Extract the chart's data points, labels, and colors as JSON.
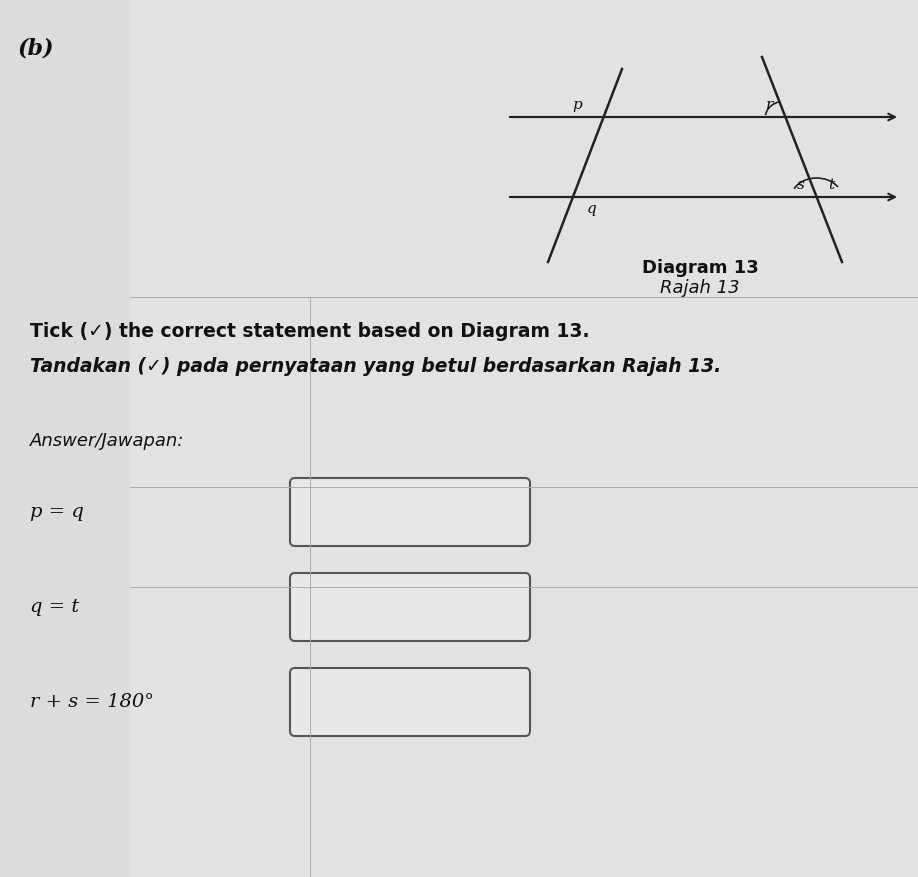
{
  "bg_color": "#e8e8e8",
  "title_b": "(b)",
  "diagram_label": "Diagram 13",
  "diagram_label_ms": "Rajah 13",
  "instruction_en": "Tick (✓) the correct statement based on Diagram 13.",
  "instruction_ms": "Tandakan (✓) pada pernyataan yang betul berdasarkan Rajah 13.",
  "answer_label": "Answer/Jawapan:",
  "statements": [
    "p = q",
    "q = t",
    "r + s = 180°"
  ],
  "line_color": "#222222",
  "text_color": "#111111"
}
